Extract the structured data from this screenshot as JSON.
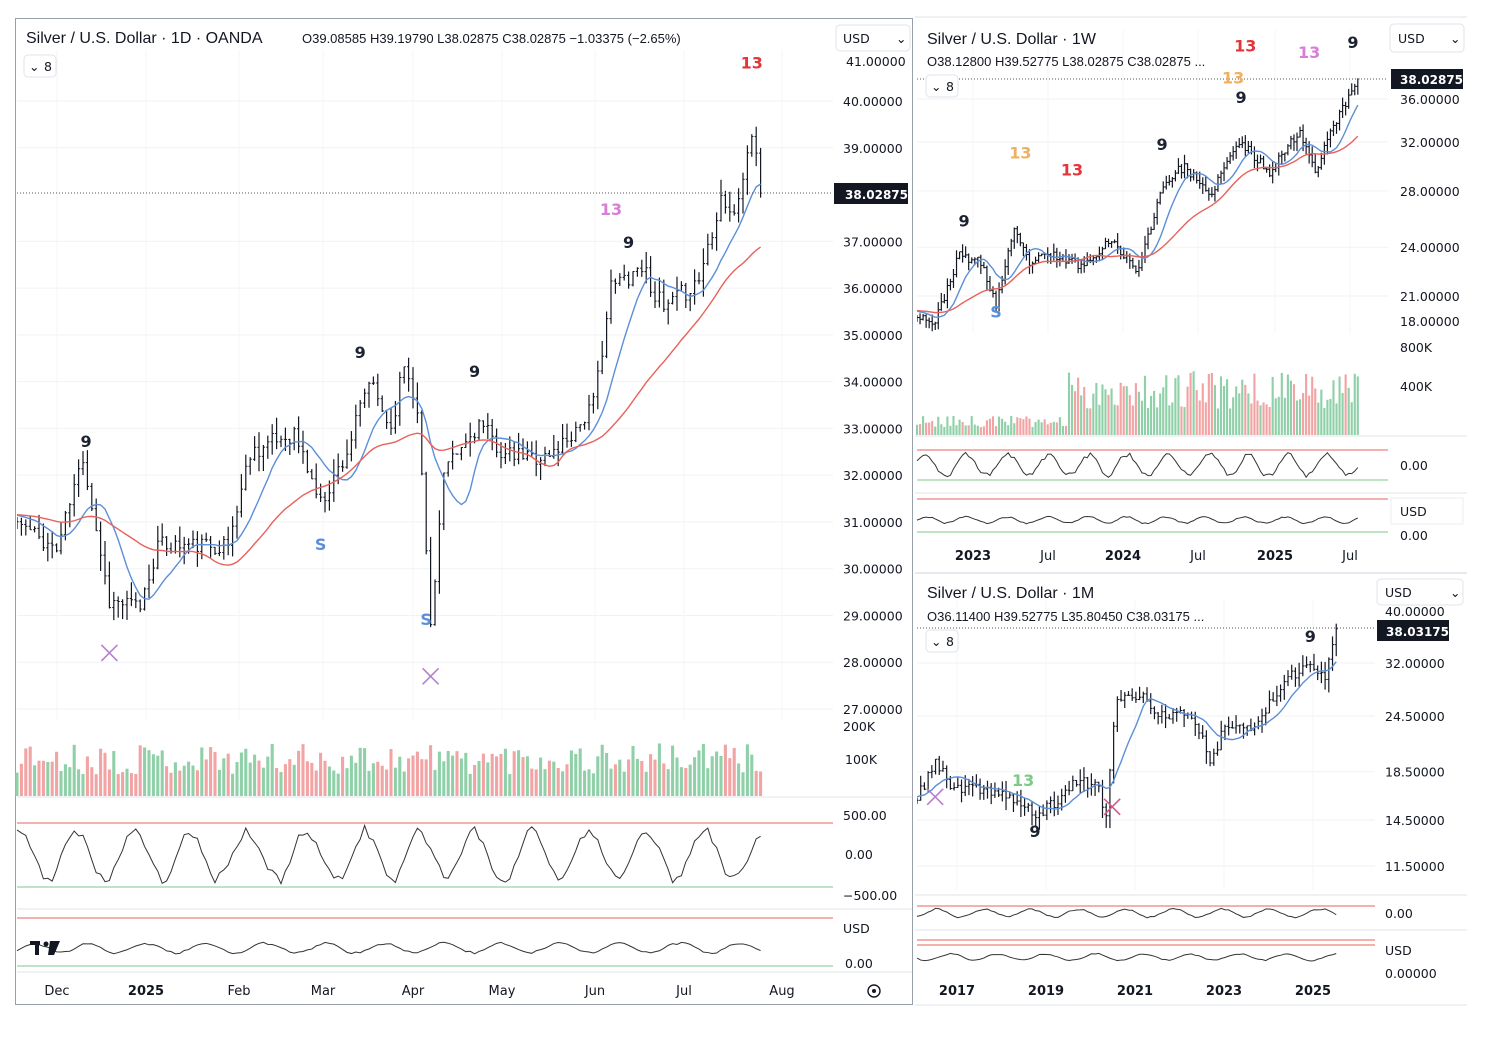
{
  "chart_data": [
    {
      "id": "daily",
      "type": "ohlc",
      "title": "Silver / U.S. Dollar · 1D · OANDA",
      "ohlc_summary": "O39.08585 H39.19790 L38.02875 C38.02875 −1.03375 (−2.65%)",
      "currency": "USD",
      "indicator_count": "8",
      "last_price": "38.02875",
      "y_scale": "linear",
      "ylim": [
        26.8,
        41.0
      ],
      "y_ticks": [
        "40.00000",
        "39.00000",
        "37.00000",
        "36.00000",
        "35.00000",
        "34.00000",
        "33.00000",
        "32.00000",
        "31.00000",
        "30.00000",
        "29.00000",
        "28.00000",
        "27.00000"
      ],
      "y_tick_values": [
        40,
        39,
        37,
        36,
        35,
        34,
        33,
        32,
        31,
        30,
        29,
        28,
        27
      ],
      "y_tick_partial_top": "41.00000",
      "x_ticks": [
        "Dec",
        "2025",
        "Feb",
        "Mar",
        "Apr",
        "May",
        "Jun",
        "Jul",
        "Aug"
      ],
      "x_tick_bold": [
        false,
        true,
        false,
        false,
        false,
        false,
        false,
        false,
        false
      ],
      "close_keypoints": [
        [
          0,
          31.0
        ],
        [
          9,
          30.4
        ],
        [
          15,
          32.4
        ],
        [
          21,
          29.3
        ],
        [
          28,
          29.2
        ],
        [
          32,
          30.5
        ],
        [
          48,
          30.5
        ],
        [
          53,
          32.5
        ],
        [
          63,
          32.9
        ],
        [
          69,
          31.4
        ],
        [
          75,
          32.5
        ],
        [
          80,
          34.0
        ],
        [
          85,
          33.0
        ],
        [
          88,
          34.4
        ],
        [
          91,
          33.5
        ],
        [
          94,
          28.8
        ],
        [
          97,
          32.0
        ],
        [
          105,
          33.1
        ],
        [
          111,
          32.4
        ],
        [
          121,
          32.4
        ],
        [
          127,
          33.0
        ],
        [
          131,
          33.5
        ],
        [
          135,
          36.0
        ],
        [
          142,
          36.5
        ],
        [
          147,
          35.5
        ],
        [
          155,
          36.2
        ],
        [
          160,
          38.0
        ],
        [
          163,
          37.5
        ],
        [
          167,
          39.3
        ],
        [
          169,
          38.03
        ]
      ],
      "moving_averages": [
        {
          "name": "fast MA",
          "period": 10,
          "color": "#5b8fd9"
        },
        {
          "name": "slow MA",
          "period": 30,
          "color": "#e8615a"
        }
      ],
      "annotations": [
        {
          "t": 15.7,
          "price": 32.6,
          "label": "9",
          "color": "#1c2230"
        },
        {
          "t": 78,
          "price": 34.5,
          "label": "9",
          "color": "#1c2230"
        },
        {
          "t": 104,
          "price": 34.1,
          "label": "9",
          "color": "#1c2230"
        },
        {
          "t": 139,
          "price": 36.86,
          "label": "9",
          "color": "#1c2230"
        },
        {
          "t": 135,
          "price": 37.56,
          "label": "13",
          "color": "#d77fd6"
        },
        {
          "t": 167,
          "price": 40.7,
          "label": "13",
          "color": "#e2363a"
        },
        {
          "t": 69,
          "price": 30.4,
          "label": "S",
          "color": "#5b8fd9"
        },
        {
          "t": 93,
          "price": 28.8,
          "label": "S",
          "color": "#5b8fd9"
        }
      ],
      "markers": [
        {
          "t": 21,
          "price": 28.2,
          "shape": "x",
          "color": "#b77fcf"
        },
        {
          "t": 94,
          "price": 27.7,
          "shape": "x",
          "color": "#b77fcf"
        }
      ],
      "volume_ticks": [
        "200K",
        "100K"
      ],
      "oscillator1_ticks": [
        "500.00",
        "0.00",
        "−500.00"
      ],
      "oscillator2_ticks": [
        "USD",
        "0.00"
      ]
    },
    {
      "id": "weekly",
      "type": "ohlc",
      "title": "Silver / U.S. Dollar · 1W",
      "ohlc_summary": "O38.12800 H39.52775 L38.02875 C38.02875 ...",
      "currency": "USD",
      "indicator_count": "8",
      "last_price": "38.02875",
      "y_scale": "log",
      "y_ticks": [
        "36.00000",
        "32.00000",
        "28.00000",
        "24.00000",
        "21.00000"
      ],
      "y_tick_values": [
        36,
        32,
        28,
        24,
        21
      ],
      "y_tick_partial_bottom": "18.00000",
      "x_ticks": [
        "2023",
        "Jul",
        "2024",
        "Jul",
        "2025",
        "Jul"
      ],
      "x_tick_bold": [
        true,
        false,
        true,
        false,
        true,
        false
      ],
      "close_keypoints": [
        [
          0,
          20.0
        ],
        [
          6,
          19.5
        ],
        [
          14,
          23.5
        ],
        [
          21,
          23.0
        ],
        [
          26,
          20.5
        ],
        [
          32,
          25.0
        ],
        [
          37,
          23.0
        ],
        [
          44,
          23.5
        ],
        [
          55,
          22.8
        ],
        [
          63,
          24.5
        ],
        [
          73,
          22.5
        ],
        [
          81,
          28.5
        ],
        [
          88,
          30.0
        ],
        [
          96,
          27.5
        ],
        [
          106,
          32.0
        ],
        [
          116,
          29.5
        ],
        [
          126,
          33.0
        ],
        [
          131,
          29.5
        ],
        [
          136,
          33.0
        ],
        [
          141,
          35.5
        ],
        [
          145,
          38.03
        ]
      ],
      "moving_averages": [
        {
          "name": "fast MA",
          "period": 10,
          "color": "#5b8fd9"
        },
        {
          "name": "slow MA",
          "period": 30,
          "color": "#e8615a"
        }
      ],
      "annotations": [
        {
          "t": 15.5,
          "price": 25.4,
          "label": "9",
          "color": "#1c2230"
        },
        {
          "t": 34,
          "price": 30.6,
          "label": "13",
          "color": "#f0b060"
        },
        {
          "t": 51,
          "price": 29.2,
          "label": "13",
          "color": "#e2363a"
        },
        {
          "t": 80.6,
          "price": 31.3,
          "label": "9",
          "color": "#1c2230"
        },
        {
          "t": 106.6,
          "price": 35.6,
          "label": "9",
          "color": "#1c2230"
        },
        {
          "t": 108,
          "price": 41.0,
          "label": "13",
          "color": "#e2363a"
        },
        {
          "t": 104,
          "price": 38.2,
          "label": "13",
          "color": "#f0b060"
        },
        {
          "t": 129,
          "price": 40.3,
          "label": "13",
          "color": "#d77fd6"
        },
        {
          "t": 143.4,
          "price": 41.4,
          "label": "9",
          "color": "#1c2230"
        },
        {
          "t": 26,
          "price": 19.8,
          "label": "S",
          "color": "#5b8fd9"
        }
      ],
      "markers": [],
      "volume_ticks": [
        "800K",
        "400K"
      ],
      "oscillator1_ticks": [
        "0.00"
      ],
      "oscillator2_ticks": [
        "USD",
        "0.00"
      ]
    },
    {
      "id": "monthly",
      "type": "ohlc",
      "title": "Silver / U.S. Dollar · 1M",
      "ohlc_summary": "O36.11400 H39.52775 L35.80450 C38.03175 ...",
      "currency": "USD",
      "indicator_count": "8",
      "last_price": "38.03175",
      "y_scale": "log",
      "y_ticks": [
        "32.00000",
        "24.50000",
        "18.50000",
        "14.50000",
        "11.50000"
      ],
      "y_tick_values": [
        32,
        24.5,
        18.5,
        14.5,
        11.5
      ],
      "y_tick_partial_top": "40.00000",
      "x_ticks": [
        "2017",
        "2019",
        "2021",
        "2023",
        "2025"
      ],
      "x_tick_bold": [
        true,
        true,
        true,
        true,
        true
      ],
      "close_keypoints": [
        [
          0,
          16.0
        ],
        [
          5,
          19.6
        ],
        [
          9,
          17.0
        ],
        [
          22,
          16.8
        ],
        [
          32,
          14.8
        ],
        [
          38,
          16.0
        ],
        [
          44,
          18.0
        ],
        [
          49,
          16.8
        ],
        [
          51,
          15.0
        ],
        [
          54,
          26.6
        ],
        [
          60,
          27.0
        ],
        [
          67,
          24.3
        ],
        [
          74,
          24.8
        ],
        [
          79,
          19.6
        ],
        [
          84,
          23.8
        ],
        [
          92,
          23.2
        ],
        [
          99,
          29.5
        ],
        [
          106,
          31.7
        ],
        [
          110,
          29.5
        ],
        [
          113,
          38.03
        ]
      ],
      "moving_averages": [
        {
          "name": "fast MA",
          "period": 10,
          "color": "#5b8fd9"
        }
      ],
      "annotations": [
        {
          "t": 28.6,
          "price": 17.2,
          "label": "13",
          "color": "#7cc98a"
        },
        {
          "t": 31.8,
          "price": 13.3,
          "label": "9",
          "color": "#1c2230"
        },
        {
          "t": 106,
          "price": 35.6,
          "label": "9",
          "color": "#1c2230"
        }
      ],
      "markers": [
        {
          "t": 4.9,
          "price": 16.3,
          "shape": "x",
          "color": "#b77fcf"
        },
        {
          "t": 52.6,
          "price": 15.5,
          "shape": "x",
          "color": "#d05a8a"
        }
      ],
      "oscillator1_ticks": [
        "0.00"
      ],
      "oscillator2_ticks": [
        "USD",
        "0.00000"
      ]
    }
  ]
}
